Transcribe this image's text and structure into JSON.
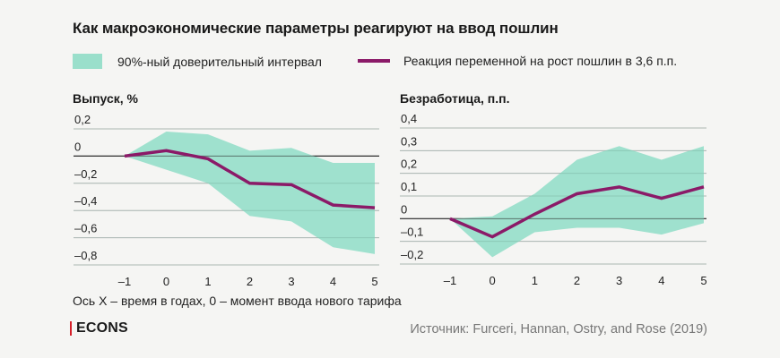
{
  "title": "Как макроэкономические параметры реагируют на ввод пошлин",
  "legend": {
    "band_label": "90%-ный доверительный интервал",
    "line_label": "Реакция переменной на рост пошлин в 3,6 п.п."
  },
  "colors": {
    "band": "#9adfcb",
    "line": "#8b1a68",
    "grid": "#c4c4c4",
    "zero": "#333333",
    "brand_accent": "#d6202a",
    "background": "#f5f5f3"
  },
  "note": "Ось X – время в годах, 0 – момент ввода нового тарифа",
  "brand": "ECONS",
  "source": "Источник: Furceri, Hannan, Ostry, and Rose (2019)",
  "chart_data": [
    {
      "type": "line",
      "title": "Выпуск, %",
      "xlabel": "Ось X – время в годах, 0 – момент ввода нового тарифа",
      "ylabel": "",
      "x": [
        -1,
        0,
        1,
        2,
        3,
        4,
        5
      ],
      "x_tick_labels": [
        "–1",
        "0",
        "1",
        "2",
        "3",
        "4",
        "5"
      ],
      "ylim": [
        -0.8,
        0.2
      ],
      "y_ticks": [
        0.2,
        0,
        -0.2,
        -0.4,
        -0.6,
        -0.8
      ],
      "y_tick_labels": [
        "0,2",
        "0",
        "–0,2",
        "–0,4",
        "–0,6",
        "–0,8"
      ],
      "grid": true,
      "series": [
        {
          "name": "Реакция переменной на рост пошлин в 3,6 п.п.",
          "values": [
            0,
            0.04,
            -0.02,
            -0.2,
            -0.21,
            -0.36,
            -0.38
          ]
        }
      ],
      "band": {
        "name": "90%-ный доверительный интервал",
        "upper": [
          0,
          0.18,
          0.16,
          0.04,
          0.06,
          -0.05,
          -0.05
        ],
        "lower": [
          0,
          -0.1,
          -0.2,
          -0.44,
          -0.48,
          -0.67,
          -0.72
        ]
      }
    },
    {
      "type": "line",
      "title": "Безработица, п.п.",
      "xlabel": "Ось X – время в годах, 0 – момент ввода нового тарифа",
      "ylabel": "",
      "x": [
        -1,
        0,
        1,
        2,
        3,
        4,
        5
      ],
      "x_tick_labels": [
        "–1",
        "0",
        "1",
        "2",
        "3",
        "4",
        "5"
      ],
      "ylim": [
        -0.2,
        0.4
      ],
      "y_ticks": [
        0.4,
        0.3,
        0.2,
        0.1,
        0,
        -0.1,
        -0.2
      ],
      "y_tick_labels": [
        "0,4",
        "0,3",
        "0,2",
        "0,1",
        "0",
        "–0,1",
        "–0,2"
      ],
      "grid": true,
      "series": [
        {
          "name": "Реакция переменной на рост пошлин в 3,6 п.п.",
          "values": [
            0,
            -0.08,
            0.02,
            0.11,
            0.14,
            0.09,
            0.14
          ]
        }
      ],
      "band": {
        "name": "90%-ный доверительный интервал",
        "upper": [
          0,
          0.01,
          0.11,
          0.26,
          0.32,
          0.26,
          0.32
        ],
        "lower": [
          0,
          -0.17,
          -0.06,
          -0.04,
          -0.04,
          -0.07,
          -0.02
        ]
      }
    }
  ]
}
